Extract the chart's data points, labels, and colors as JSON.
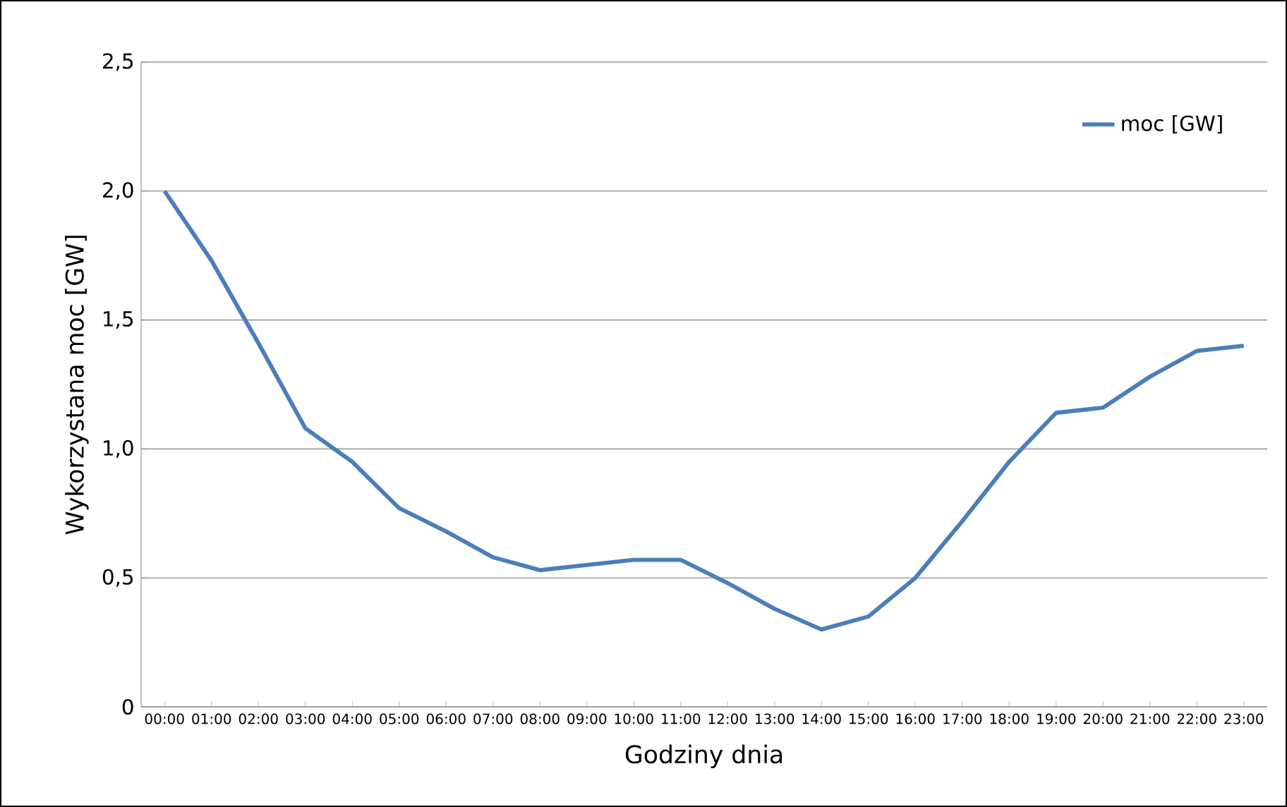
{
  "chart_data": {
    "type": "line",
    "xlabel": "Godziny dnia",
    "ylabel": "Wykorzystana moc [GW]",
    "categories": [
      "00:00",
      "01:00",
      "02:00",
      "03:00",
      "04:00",
      "05:00",
      "06:00",
      "07:00",
      "08:00",
      "09:00",
      "10:00",
      "11:00",
      "12:00",
      "13:00",
      "14:00",
      "15:00",
      "16:00",
      "17:00",
      "18:00",
      "19:00",
      "20:00",
      "21:00",
      "22:00",
      "23:00"
    ],
    "series": [
      {
        "name": "moc [GW]",
        "color": "#4a7ebb",
        "values": [
          2.0,
          1.73,
          1.41,
          1.08,
          0.95,
          0.77,
          0.68,
          0.58,
          0.53,
          0.55,
          0.57,
          0.57,
          0.48,
          0.38,
          0.3,
          0.35,
          0.5,
          0.72,
          0.95,
          1.14,
          1.16,
          1.28,
          1.38,
          1.4
        ]
      }
    ],
    "ylim": [
      0,
      2.5
    ],
    "yticks": [
      0,
      {
        "value": 0.5,
        "label": "0,5"
      },
      {
        "value": 1.0,
        "label": "1,0"
      },
      {
        "value": 1.5,
        "label": "1,5"
      },
      {
        "value": 2.0,
        "label": "2,0"
      },
      {
        "value": 2.5,
        "label": "2,5"
      }
    ],
    "grid": "y",
    "legend": "top right",
    "marker": "none",
    "line_style": "solid"
  }
}
